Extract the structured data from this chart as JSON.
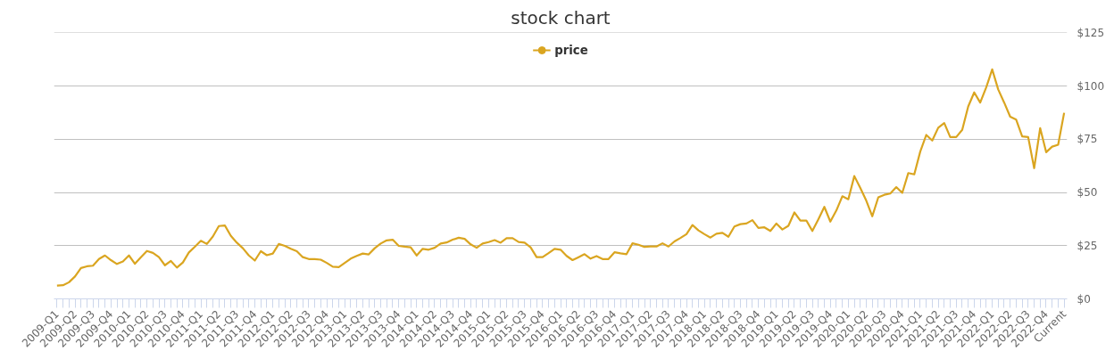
{
  "chart_data": {
    "type": "line",
    "title": "stock chart",
    "categories": [
      "2009-Q1",
      null,
      null,
      "2009-Q2",
      null,
      null,
      "2009-Q3",
      null,
      null,
      "2009-Q4",
      null,
      null,
      "2010-Q1",
      null,
      null,
      "2010-Q2",
      null,
      null,
      "2010-Q3",
      null,
      null,
      "2010-Q4",
      null,
      null,
      "2011-Q1",
      null,
      null,
      "2011-Q2",
      null,
      null,
      "2011-Q3",
      null,
      null,
      "2011-Q4",
      null,
      null,
      "2012-Q1",
      null,
      null,
      "2012-Q2",
      null,
      null,
      "2012-Q3",
      null,
      null,
      "2012-Q4",
      null,
      null,
      "2013-Q1",
      null,
      null,
      "2013-Q2",
      null,
      null,
      "2013-Q3",
      null,
      null,
      "2013-Q4",
      null,
      null,
      "2014-Q1",
      null,
      null,
      "2014-Q2",
      null,
      null,
      "2014-Q3",
      null,
      null,
      "2014-Q4",
      null,
      null,
      "2015-Q1",
      null,
      null,
      "2015-Q2",
      null,
      null,
      "2015-Q3",
      null,
      null,
      "2015-Q4",
      null,
      null,
      "2016-Q1",
      null,
      null,
      "2016-Q2",
      null,
      null,
      "2016-Q3",
      null,
      null,
      "2016-Q4",
      null,
      null,
      "2017-Q1",
      null,
      null,
      "2017-Q2",
      null,
      null,
      "2017-Q3",
      null,
      null,
      "2017-Q4",
      null,
      null,
      "2018-Q1",
      null,
      null,
      "2018-Q2",
      null,
      null,
      "2018-Q3",
      null,
      null,
      "2018-Q4",
      null,
      null,
      "2019-Q1",
      null,
      null,
      "2019-Q2",
      null,
      null,
      "2019-Q3",
      null,
      null,
      "2019-Q4",
      null,
      null,
      "2020-Q1",
      null,
      null,
      "2020-Q2",
      null,
      null,
      "2020-Q3",
      null,
      null,
      "2020-Q4",
      null,
      null,
      "2021-Q1",
      null,
      null,
      "2021-Q2",
      null,
      null,
      "2021-Q3",
      null,
      null,
      "2021-Q4",
      null,
      null,
      "2022-Q1",
      null,
      null,
      "2022-Q2",
      null,
      null,
      "2022-Q3",
      null,
      null,
      "2022-Q4",
      null,
      null,
      "Current"
    ],
    "series": [
      {
        "name": "price",
        "color": "#daa520",
        "values": [
          6.2,
          6.4,
          7.8,
          10.5,
          14.5,
          15.3,
          15.6,
          18.7,
          20.4,
          18.2,
          16.4,
          17.6,
          20.4,
          16.5,
          19.6,
          22.5,
          21.6,
          19.6,
          15.8,
          17.8,
          14.7,
          17.1,
          21.8,
          24.5,
          27.3,
          25.8,
          29.3,
          34.2,
          34.5,
          29.6,
          26.4,
          23.8,
          20.4,
          18.0,
          22.4,
          20.5,
          21.3,
          25.8,
          24.9,
          23.5,
          22.4,
          19.6,
          18.7,
          18.7,
          18.4,
          16.9,
          15.1,
          14.9,
          16.9,
          18.9,
          20.2,
          21.3,
          20.9,
          23.8,
          26.0,
          27.5,
          27.8,
          24.9,
          24.5,
          24.2,
          20.4,
          23.5,
          23.1,
          24.0,
          26.0,
          26.5,
          27.8,
          28.7,
          28.2,
          25.6,
          24.0,
          26.0,
          26.7,
          27.6,
          26.4,
          28.5,
          28.5,
          26.7,
          26.4,
          24.2,
          19.6,
          19.6,
          21.5,
          23.5,
          23.1,
          20.2,
          18.2,
          19.6,
          21.0,
          18.9,
          20.1,
          18.7,
          18.7,
          21.9,
          21.4,
          21.0,
          26.1,
          25.4,
          24.4,
          24.6,
          24.6,
          26.1,
          24.6,
          27.0,
          28.6,
          30.4,
          34.7,
          32.2,
          30.4,
          28.8,
          30.6,
          31.0,
          29.2,
          34.0,
          35.1,
          35.4,
          37.0,
          33.3,
          33.6,
          31.9,
          35.4,
          32.6,
          34.3,
          40.6,
          36.8,
          36.8,
          31.9,
          37.4,
          43.2,
          36.3,
          41.5,
          48.2,
          46.8,
          57.7,
          52.1,
          46.1,
          38.8,
          47.7,
          48.9,
          49.5,
          52.5,
          49.8,
          59.1,
          58.5,
          69.2,
          77.0,
          74.4,
          80.4,
          82.6,
          76.0,
          76.0,
          79.4,
          90.4,
          97.0,
          92.2,
          99.3,
          107.8,
          98.4,
          92.2,
          85.6,
          84.2,
          76.3,
          76.0,
          61.4,
          80.2,
          68.9,
          71.5,
          72.4,
          87.4
        ]
      }
    ],
    "ylim": [
      0,
      125
    ],
    "yticks": [
      {
        "value": 0,
        "label": "$0"
      },
      {
        "value": 25,
        "label": "$25"
      },
      {
        "value": 50,
        "label": "$50"
      },
      {
        "value": 75,
        "label": "$75"
      },
      {
        "value": 100,
        "label": "$100"
      },
      {
        "value": 125,
        "label": "$125"
      }
    ],
    "grid": "y",
    "legend": "top"
  }
}
